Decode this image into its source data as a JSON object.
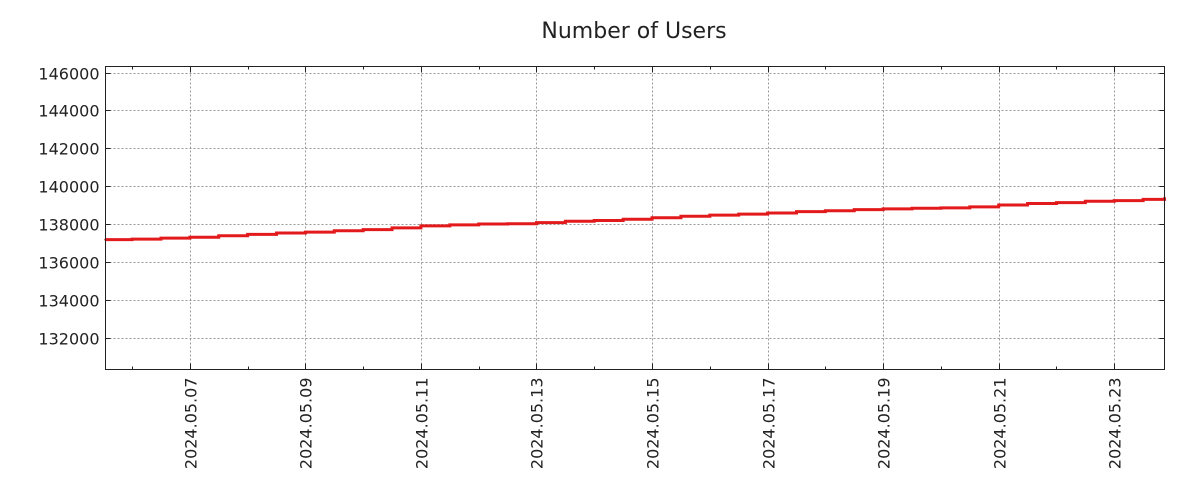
{
  "chart_data": {
    "type": "line",
    "title": "Number of Users",
    "xlabel": "",
    "ylabel": "",
    "x_units": "day of May 2024",
    "xlim": [
      5.54,
      23.87
    ],
    "ylim": [
      130310,
      146320
    ],
    "grid": true,
    "line_style": "step",
    "colors": {
      "series": "#e31a1c",
      "grid": "#999999",
      "axis": "#222222"
    },
    "x_ticks": [
      {
        "value": 7,
        "label": "2024.05.07"
      },
      {
        "value": 9,
        "label": "2024.05.09"
      },
      {
        "value": 11,
        "label": "2024.05.11"
      },
      {
        "value": 13,
        "label": "2024.05.13"
      },
      {
        "value": 15,
        "label": "2024.05.15"
      },
      {
        "value": 17,
        "label": "2024.05.17"
      },
      {
        "value": 19,
        "label": "2024.05.19"
      },
      {
        "value": 21,
        "label": "2024.05.21"
      },
      {
        "value": 23,
        "label": "2024.05.23"
      }
    ],
    "y_ticks": [
      {
        "value": 132000,
        "label": "132000"
      },
      {
        "value": 134000,
        "label": "134000"
      },
      {
        "value": 136000,
        "label": "136000"
      },
      {
        "value": 138000,
        "label": "138000"
      },
      {
        "value": 140000,
        "label": "140000"
      },
      {
        "value": 142000,
        "label": "142000"
      },
      {
        "value": 144000,
        "label": "144000"
      },
      {
        "value": 146000,
        "label": "146000"
      }
    ],
    "series": [
      {
        "name": "Number of Users",
        "x": [
          5.54,
          6.0,
          6.5,
          7.0,
          7.5,
          8.0,
          8.5,
          9.0,
          9.5,
          10.0,
          10.5,
          11.0,
          11.5,
          12.0,
          12.5,
          13.0,
          13.5,
          14.0,
          14.5,
          15.0,
          15.5,
          16.0,
          16.5,
          17.0,
          17.5,
          18.0,
          18.5,
          19.0,
          19.5,
          20.0,
          20.5,
          21.0,
          21.5,
          22.0,
          22.5,
          23.0,
          23.5,
          23.87
        ],
        "values": [
          137170,
          137200,
          137250,
          137300,
          137380,
          137450,
          137520,
          137570,
          137640,
          137700,
          137790,
          137900,
          137950,
          138000,
          138010,
          138070,
          138140,
          138180,
          138250,
          138330,
          138410,
          138470,
          138520,
          138580,
          138650,
          138700,
          138760,
          138800,
          138830,
          138850,
          138900,
          139000,
          139080,
          139130,
          139200,
          139230,
          139300,
          139380
        ]
      }
    ]
  }
}
